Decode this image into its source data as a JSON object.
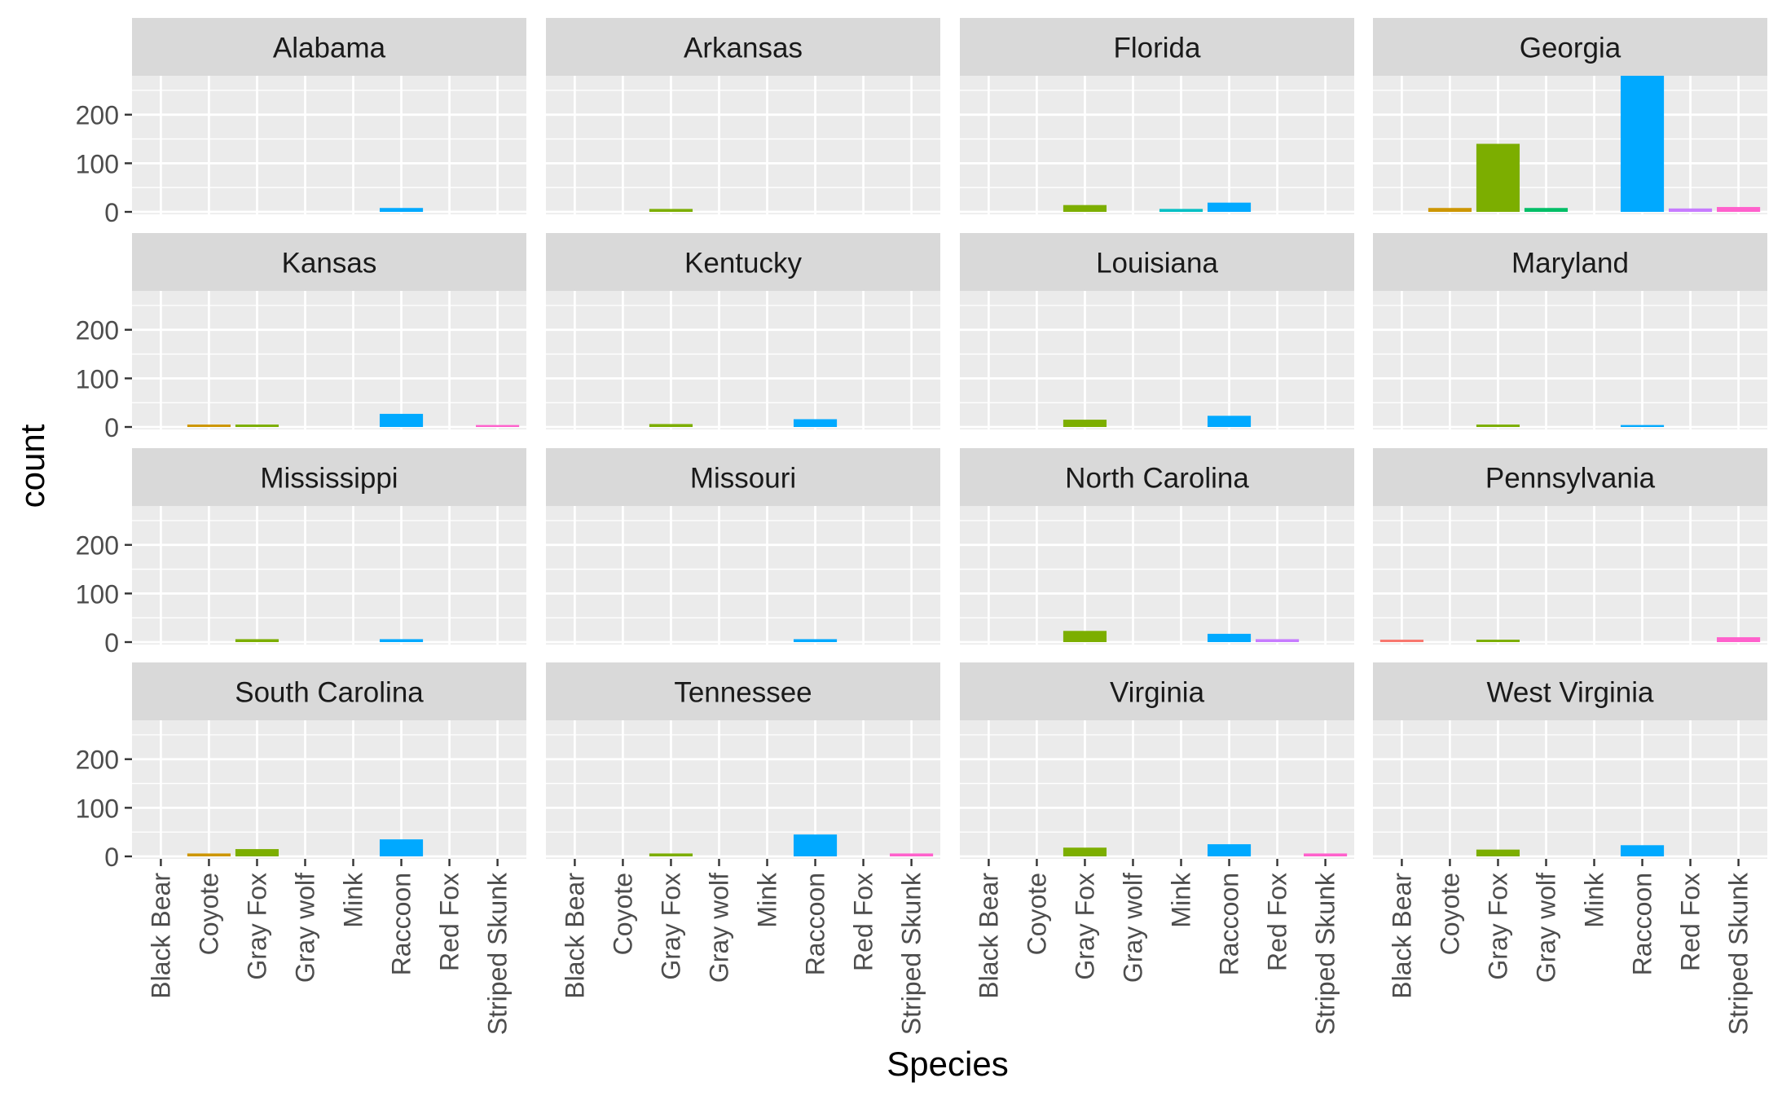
{
  "chart_data": {
    "type": "bar",
    "xlabel": "Species",
    "ylabel": "count",
    "ylim": [
      -5,
      280
    ],
    "yticks": [
      0,
      100,
      200
    ],
    "grid": true,
    "legend": "none",
    "categories": [
      "Black Bear",
      "Coyote",
      "Gray Fox",
      "Gray wolf",
      "Mink",
      "Raccoon",
      "Red Fox",
      "Striped Skunk"
    ],
    "colors": [
      "#F8766D",
      "#CD9600",
      "#7CAE00",
      "#00BE67",
      "#00BFC4",
      "#00A9FF",
      "#C77CFF",
      "#FF61CC"
    ],
    "facets": [
      {
        "label": "Alabama",
        "values": [
          0,
          0,
          0,
          0,
          0,
          8,
          0,
          0
        ]
      },
      {
        "label": "Arkansas",
        "values": [
          0,
          0,
          6,
          0,
          0,
          0,
          0,
          0
        ]
      },
      {
        "label": "Florida",
        "values": [
          0,
          0,
          14,
          0,
          6,
          19,
          0,
          0
        ]
      },
      {
        "label": "Georgia",
        "values": [
          0,
          8,
          140,
          8,
          0,
          280,
          7,
          10
        ]
      },
      {
        "label": "Kansas",
        "values": [
          0,
          5,
          5,
          0,
          0,
          27,
          0,
          4
        ]
      },
      {
        "label": "Kentucky",
        "values": [
          0,
          0,
          6,
          0,
          0,
          16,
          0,
          0
        ]
      },
      {
        "label": "Louisiana",
        "values": [
          0,
          0,
          15,
          0,
          0,
          23,
          0,
          0
        ]
      },
      {
        "label": "Maryland",
        "values": [
          0,
          0,
          5,
          0,
          0,
          4,
          0,
          0
        ]
      },
      {
        "label": "Mississippi",
        "values": [
          0,
          0,
          6,
          0,
          0,
          6,
          0,
          0
        ]
      },
      {
        "label": "Missouri",
        "values": [
          0,
          0,
          0,
          0,
          0,
          6,
          0,
          0
        ]
      },
      {
        "label": "North Carolina",
        "values": [
          0,
          0,
          23,
          0,
          0,
          17,
          6,
          0
        ]
      },
      {
        "label": "Pennsylvania",
        "values": [
          5,
          0,
          5,
          0,
          0,
          0,
          0,
          10
        ]
      },
      {
        "label": "South Carolina",
        "values": [
          0,
          6,
          15,
          0,
          0,
          35,
          0,
          0
        ]
      },
      {
        "label": "Tennessee",
        "values": [
          0,
          0,
          6,
          0,
          0,
          45,
          0,
          6
        ]
      },
      {
        "label": "Virginia",
        "values": [
          0,
          0,
          18,
          0,
          0,
          25,
          0,
          6
        ]
      },
      {
        "label": "West Virginia",
        "values": [
          0,
          0,
          14,
          0,
          0,
          23,
          0,
          0
        ]
      }
    ]
  }
}
